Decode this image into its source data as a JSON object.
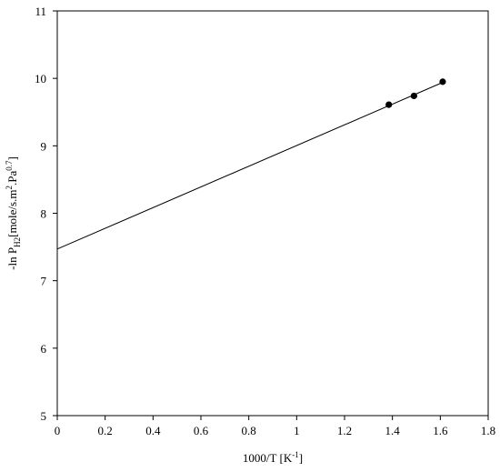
{
  "chart_data": {
    "type": "scatter",
    "title": "",
    "xlabel": "1000/T [K",
    "xlabel_sup": "-1",
    "xlabel_end": "]",
    "ylabel": {
      "prefix": "-ln P",
      "sub": "H2",
      "mid1": "[mole/s.m",
      "sup1": "2",
      "mid2": ".Pa",
      "sup2": "0.7",
      "end": "]"
    },
    "xlim": [
      0,
      1.8
    ],
    "ylim": [
      5,
      11
    ],
    "xticks": [
      "0",
      "0.2",
      "0.4",
      "0.6",
      "0.8",
      "1",
      "1.2",
      "1.4",
      "1.6",
      "1.8"
    ],
    "yticks": [
      "5",
      "6",
      "7",
      "8",
      "9",
      "10",
      "11"
    ],
    "grid": false,
    "legend": "none",
    "series": [
      {
        "x": [
          1.385,
          1.49,
          1.61
        ],
        "y": [
          9.61,
          9.74,
          9.95
        ]
      }
    ],
    "trendline": {
      "x": [
        0,
        1.61
      ],
      "y": [
        7.47,
        9.94
      ]
    }
  }
}
